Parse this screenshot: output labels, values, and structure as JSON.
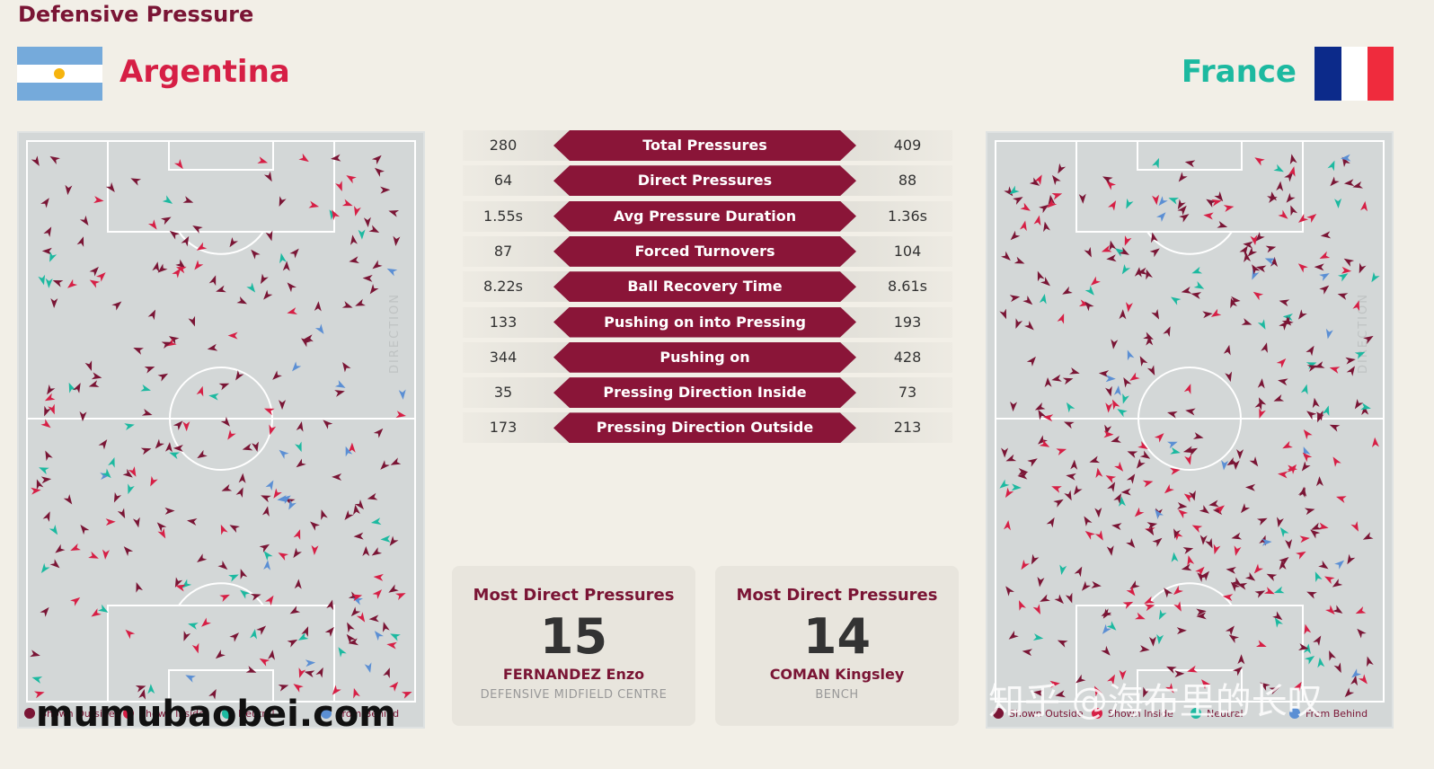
{
  "header": {
    "title": "Defensive Pressure",
    "home": "Argentina",
    "away": "France"
  },
  "stats": [
    {
      "home": 280,
      "label": "Total Pressures",
      "away": 409
    },
    {
      "home": 64,
      "label": "Direct Pressures",
      "away": 88
    },
    {
      "home": "1.55s",
      "label": "Avg Pressure Duration",
      "away": "1.36s"
    },
    {
      "home": 87,
      "label": "Forced Turnovers",
      "away": 104
    },
    {
      "home": "8.22s",
      "label": "Ball Recovery Time",
      "away": "8.61s"
    },
    {
      "home": 133,
      "label": "Pushing on into Pressing",
      "away": 193
    },
    {
      "home": 344,
      "label": "Pushing on",
      "away": 428
    },
    {
      "home": 35,
      "label": "Pressing Direction Inside",
      "away": 73
    },
    {
      "home": 173,
      "label": "Pressing Direction Outside",
      "away": 213
    }
  ],
  "cards": [
    {
      "title": "Most Direct Pressures",
      "value": 15,
      "player": "FERNANDEZ Enzo",
      "role": "DEFENSIVE MIDFIELD CENTRE"
    },
    {
      "title": "Most Direct Pressures",
      "value": 14,
      "player": "COMAN Kingsley",
      "role": "BENCH"
    }
  ],
  "pitch": {
    "direction": "DIRECTION",
    "legend": [
      {
        "label": "Shown Outside",
        "color": "#7a1535"
      },
      {
        "label": "Shown Inside",
        "color": "#d61f45"
      },
      {
        "label": "Neutral",
        "color": "#1cb9a0"
      },
      {
        "label": "From Behind",
        "color": "#5b8fd4"
      }
    ]
  },
  "watermarks": [
    "mumubaobei.com",
    "知乎 @海布里的长叹"
  ]
}
